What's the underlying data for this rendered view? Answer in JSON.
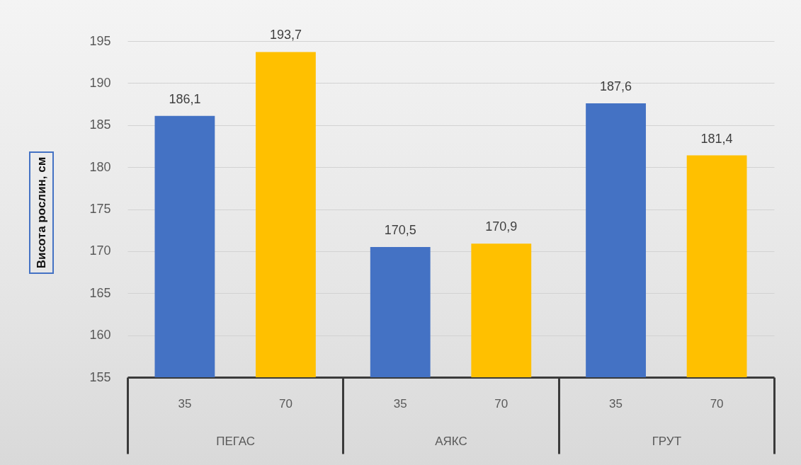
{
  "chart_data": {
    "type": "bar",
    "ylabel": "Висота рослин, см",
    "categories": [
      "ПЕГАС",
      "АЯКС",
      "ГРУТ"
    ],
    "series": [
      {
        "name": "35",
        "color": "#4472c4",
        "values": [
          186.1,
          170.5,
          187.6
        ],
        "value_labels": [
          "186,1",
          "170,5",
          "187,6"
        ]
      },
      {
        "name": "70",
        "color": "#ffc000",
        "values": [
          193.7,
          170.9,
          181.4
        ],
        "value_labels": [
          "193,7",
          "170,9",
          "181,4"
        ]
      }
    ],
    "ylim": [
      155,
      195
    ],
    "yticks": [
      155,
      160,
      165,
      170,
      175,
      180,
      185,
      190,
      195
    ],
    "grid": "y",
    "legend": false
  }
}
